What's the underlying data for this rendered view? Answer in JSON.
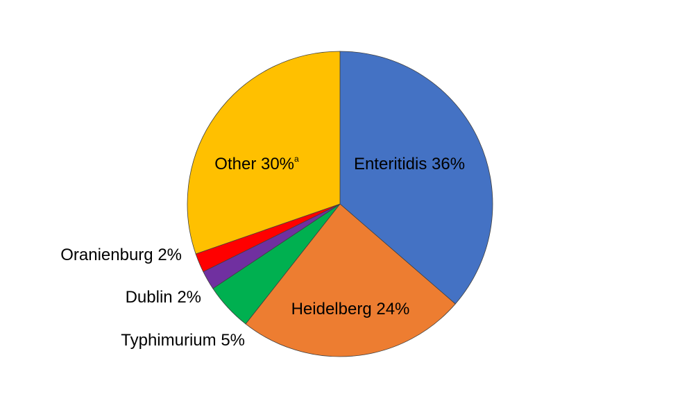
{
  "chart_data": {
    "type": "pie",
    "categories": [
      "Enteritidis",
      "Heidelberg",
      "Typhimurium",
      "Dublin",
      "Oranienburg",
      "Other"
    ],
    "values": [
      36,
      24,
      5,
      2,
      2,
      30
    ],
    "value_labels": [
      "36%",
      "24%",
      "5%",
      "2%",
      "2%",
      "30%"
    ],
    "value_label_notes": [
      null,
      null,
      null,
      null,
      null,
      "a"
    ],
    "colors": [
      "#4472c4",
      "#ed7d31",
      "#00b050",
      "#7030a0",
      "#ff0000",
      "#ffc000"
    ]
  }
}
